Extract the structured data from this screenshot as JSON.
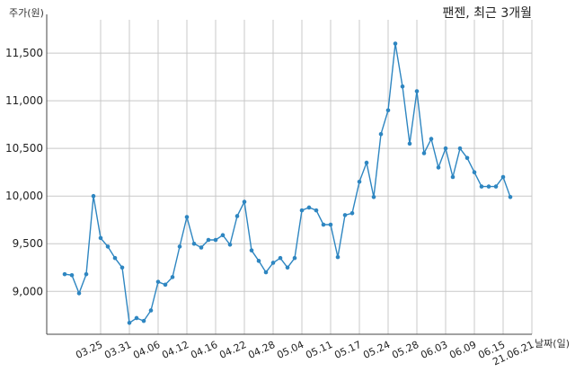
{
  "chart_data": {
    "type": "line",
    "title": "팬젠, 최근 3개월",
    "ylabel": "주가(원)",
    "xlabel": "날짜(일)",
    "ylim": [
      8550,
      11850
    ],
    "yticks": [
      9000,
      9500,
      10000,
      10500,
      11000,
      11500
    ],
    "ytick_labels": [
      "9,000",
      "9,500",
      "10,000",
      "10,500",
      "11,000",
      "11,500"
    ],
    "xtick_labels": [
      "03.25",
      "03.31",
      "04.06",
      "04.12",
      "04.16",
      "04.22",
      "04.28",
      "05.04",
      "05.11",
      "05.17",
      "05.24",
      "05.28",
      "06.03",
      "06.09",
      "06.15",
      "21.06.21"
    ],
    "xtick_positions": [
      5,
      9,
      13,
      17,
      21,
      25,
      29,
      33,
      37,
      41,
      45,
      49,
      53,
      57,
      61,
      65
    ],
    "grid": true,
    "color": "#2e86c1",
    "series": [
      {
        "values": [
          9180,
          9170,
          8980,
          9180,
          10000,
          9560,
          9470,
          9350,
          9250,
          8670,
          8720,
          8690,
          8800,
          9100,
          9070,
          9150,
          9470,
          9780,
          9500,
          9460,
          9540,
          9540,
          9590,
          9490,
          9790,
          9940,
          9430,
          9320,
          9200,
          9300,
          9350,
          9250,
          9350,
          9850,
          9880,
          9850,
          9700,
          9700,
          9360,
          9800,
          9820,
          10150,
          10350,
          9990,
          10650,
          10900,
          11600,
          11150,
          10550,
          11100,
          10450,
          10600,
          10300,
          10500,
          10200,
          10500,
          10400,
          10250,
          10100,
          10100,
          10100,
          10200,
          9990
        ]
      }
    ]
  }
}
